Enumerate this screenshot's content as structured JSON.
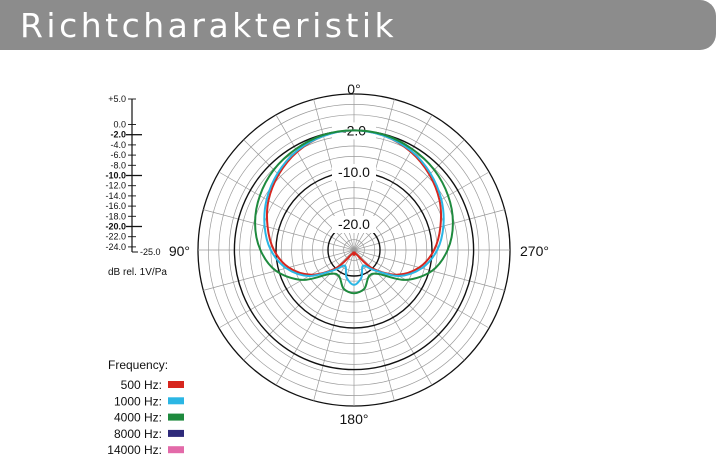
{
  "header": {
    "title": "Richtcharakteristik"
  },
  "chart_data": {
    "type": "polar",
    "title": "Richtcharakteristik",
    "angle_labels": [
      "0°",
      "90°",
      "180°",
      "270°"
    ],
    "ring_labels": [
      "-2.0",
      "-10.0",
      "-20.0"
    ],
    "radial_unit": "dB rel. 1V/Pa",
    "rlim": [
      -25,
      5
    ],
    "scale": {
      "ticks": [
        "+5.0",
        "0.0",
        "-2.0",
        "-4.0",
        "-6.0",
        "-8.0",
        "-10.0",
        "-12.0",
        "-14.0",
        "-16.0",
        "-18.0",
        "-20.0",
        "-22.0",
        "-24.0",
        "-25.0"
      ],
      "values": [
        5,
        0,
        -2,
        -4,
        -6,
        -8,
        -10,
        -12,
        -14,
        -16,
        -18,
        -20,
        -22,
        -24,
        -25
      ],
      "bold": [
        "-2.0",
        "-10.0",
        "-20.0"
      ],
      "unit_label": "dB rel. 1V/Pa"
    },
    "legend_title": "Frequency:",
    "legend_placement": "bottom-left",
    "series": [
      {
        "name": "500 Hz:",
        "color": "#d7261e",
        "angles_deg": [
          0,
          15,
          30,
          45,
          60,
          75,
          90,
          105,
          120,
          135,
          150,
          165,
          180
        ],
        "values_db": [
          -2,
          -2.3,
          -3.2,
          -4.5,
          -6,
          -7.8,
          -9.6,
          -12,
          -15.5,
          -20,
          -24,
          -24.5,
          -24
        ]
      },
      {
        "name": "1000 Hz:",
        "color": "#2bb6e4",
        "angles_deg": [
          0,
          15,
          30,
          45,
          60,
          75,
          90,
          105,
          120,
          135,
          150,
          165,
          180
        ],
        "values_db": [
          -2,
          -2.3,
          -3,
          -4.2,
          -5.6,
          -7.2,
          -9,
          -11.5,
          -15,
          -19.5,
          -21.5,
          -19.5,
          -18.3
        ]
      },
      {
        "name": "4000 Hz:",
        "color": "#1e8a3e",
        "angles_deg": [
          0,
          15,
          30,
          45,
          60,
          75,
          90,
          105,
          120,
          135,
          150,
          165,
          180
        ],
        "values_db": [
          -2,
          -2.1,
          -2.6,
          -3.2,
          -4.1,
          -5.3,
          -7,
          -9.5,
          -13.5,
          -18.5,
          -19.2,
          -17.3,
          -16.7
        ]
      },
      {
        "name": "8000 Hz:",
        "color": "#2e2a7a",
        "angles_deg": [],
        "values_db": []
      },
      {
        "name": "14000 Hz:",
        "color": "#e36aa9",
        "angles_deg": [],
        "values_db": []
      }
    ]
  }
}
